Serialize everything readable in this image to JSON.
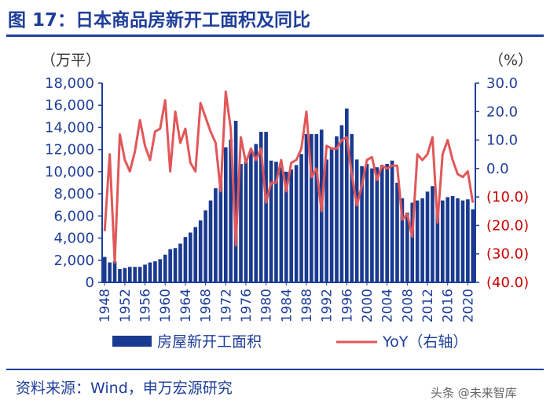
{
  "figure": {
    "title": "图 17：日本商品房新开工面积及同比",
    "left_unit": "（万平）",
    "right_unit": "（%）",
    "source": "资料来源：Wind，申万宏源研究",
    "watermark": "头条 @未来智库"
  },
  "colors": {
    "bar": "#1a3a8f",
    "line": "#e15759",
    "axis_left": "#1f3e9a",
    "axis_right_negative": "#cc0000",
    "title": "#1f3e9a"
  },
  "chart_data": {
    "type": "bar+line",
    "title": "日本商品房新开工面积及同比",
    "x": [
      1948,
      1949,
      1950,
      1951,
      1952,
      1953,
      1954,
      1955,
      1956,
      1957,
      1958,
      1959,
      1960,
      1961,
      1962,
      1963,
      1964,
      1965,
      1966,
      1967,
      1968,
      1969,
      1970,
      1971,
      1972,
      1973,
      1974,
      1975,
      1976,
      1977,
      1978,
      1979,
      1980,
      1981,
      1982,
      1983,
      1984,
      1985,
      1986,
      1987,
      1988,
      1989,
      1990,
      1991,
      1992,
      1993,
      1994,
      1995,
      1996,
      1997,
      1998,
      1999,
      2000,
      2001,
      2002,
      2003,
      2004,
      2005,
      2006,
      2007,
      2008,
      2009,
      2010,
      2011,
      2012,
      2013,
      2014,
      2015,
      2016,
      2017,
      2018,
      2019,
      2020,
      2021
    ],
    "x_tick_labels": [
      "1948",
      "1952",
      "1956",
      "1960",
      "1964",
      "1968",
      "1972",
      "1976",
      "1980",
      "1984",
      "1988",
      "1992",
      "1996",
      "2000",
      "2004",
      "2008",
      "2012",
      "2016",
      "2020"
    ],
    "left_axis": {
      "label": "万平",
      "ylim": [
        0,
        18000
      ],
      "ticks": [
        "0",
        "2,000",
        "4,000",
        "6,000",
        "8,000",
        "10,000",
        "12,000",
        "14,000",
        "16,000",
        "18,000"
      ]
    },
    "right_axis": {
      "label": "%",
      "ylim": [
        -40,
        30
      ],
      "ticks": [
        "(40.0)",
        "(30.0)",
        "(20.0)",
        "(10.0)",
        "0.0",
        "10.0",
        "20.0",
        "30.0"
      ]
    },
    "series": [
      {
        "name": "房屋新开工面积",
        "type": "bar",
        "axis": "left",
        "values": [
          2300,
          1800,
          1900,
          1200,
          1300,
          1400,
          1400,
          1400,
          1600,
          1800,
          1900,
          2100,
          2500,
          3000,
          3100,
          3500,
          4100,
          4500,
          5000,
          5600,
          6500,
          7400,
          8500,
          9200,
          12200,
          12900,
          14600,
          10700,
          10900,
          11900,
          12500,
          13600,
          13600,
          11000,
          10900,
          10400,
          10000,
          10200,
          10600,
          11600,
          13400,
          13400,
          13400,
          13800,
          11100,
          12200,
          13200,
          14200,
          15700,
          13400,
          11100,
          10500,
          10700,
          10300,
          10400,
          10600,
          10700,
          11000,
          9000,
          7600,
          6300,
          7200,
          7400,
          7600,
          8200,
          8700,
          6700,
          7400,
          7700,
          7800,
          7600,
          7400,
          7500,
          6600
        ]
      },
      {
        "name": "YoY（右轴）",
        "type": "line",
        "axis": "right",
        "values": [
          -22,
          5,
          -33,
          12,
          3,
          -1,
          6,
          17,
          8,
          3,
          13,
          14,
          24,
          -1,
          20,
          9,
          14,
          2,
          -1,
          23,
          18,
          13,
          9,
          -8,
          27,
          14,
          -27,
          11,
          2,
          7,
          3,
          7,
          -12,
          -5,
          -5,
          3,
          -8,
          2,
          3,
          7,
          20,
          -3,
          0,
          -15,
          8,
          7,
          7,
          10,
          11,
          -2,
          -13,
          -6,
          3,
          4,
          -4,
          1,
          0,
          1,
          1,
          -18,
          -16,
          -24,
          5,
          3,
          5,
          11,
          -19,
          5,
          10,
          3,
          -2,
          -3,
          -1,
          -12
        ]
      }
    ],
    "legend": [
      {
        "label": "房屋新开工面积",
        "symbol": "bar"
      },
      {
        "label": "YoY（右轴）",
        "symbol": "line"
      }
    ],
    "legend_position": "bottom"
  }
}
